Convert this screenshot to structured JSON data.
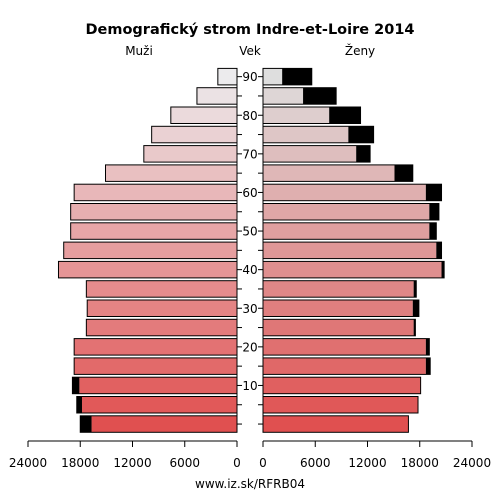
{
  "chart_data": {
    "type": "population-pyramid",
    "title": "Demografický strom Indre-et-Loire 2014",
    "left_label": "Muži",
    "center_label": "Vek",
    "right_label": "Ženy",
    "footer": "www.iz.sk/RFRB04",
    "age_groups": [
      "0-4",
      "5-9",
      "10-14",
      "15-19",
      "20-24",
      "25-29",
      "30-34",
      "35-39",
      "40-44",
      "45-49",
      "50-54",
      "55-59",
      "60-64",
      "65-69",
      "70-74",
      "75-79",
      "80-84",
      "85-89",
      "90+"
    ],
    "age_tick_labels": [
      "10",
      "20",
      "30",
      "40",
      "50",
      "60",
      "70",
      "80",
      "90"
    ],
    "x_tick_labels": [
      "24000",
      "18000",
      "12000",
      "6000",
      "0",
      "0",
      "6000",
      "12000",
      "18000",
      "24000"
    ],
    "xlim": [
      0,
      24000
    ],
    "series": [
      {
        "name": "Muži",
        "values": [
          18000,
          18400,
          18900,
          18700,
          18700,
          17300,
          17200,
          17300,
          20500,
          19900,
          19100,
          19100,
          18700,
          15100,
          10700,
          9800,
          7600,
          4600,
          2200
        ]
      },
      {
        "name": "Ženy",
        "values": [
          16700,
          17800,
          18100,
          19200,
          19100,
          17500,
          17900,
          17600,
          20800,
          20500,
          19900,
          20200,
          20500,
          17200,
          12300,
          12700,
          11200,
          8400,
          5600
        ]
      }
    ],
    "surplus_color": "#000000",
    "male_colors": [
      "#e05050",
      "#ecebed"
    ],
    "female_colors": [
      "#e05050",
      "#dedede"
    ]
  }
}
